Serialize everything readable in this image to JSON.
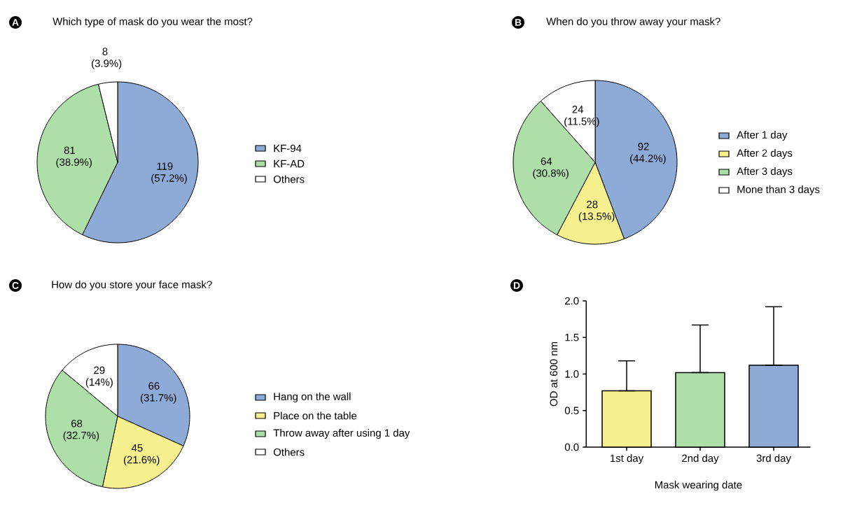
{
  "chart_data": [
    {
      "type": "pie",
      "title": "Which type of mask do you wear the most?",
      "annotations": [
        "A"
      ],
      "categories": [
        "KF-94",
        "KF-AD",
        "Others"
      ],
      "values": [
        119,
        81,
        8
      ],
      "colors": [
        "#8eaad6",
        "#aedfa9",
        "#ffffff"
      ],
      "value_labels": [
        "119 (57.2%)",
        "81 (38.9%)",
        "8 (3.9%)"
      ],
      "legend": "right"
    },
    {
      "type": "pie",
      "title": "When do you throw away your mask?",
      "annotations": [
        "B"
      ],
      "categories": [
        "After 1 day",
        "After 2 days",
        "After 3 days",
        "Mone than 3 days"
      ],
      "values": [
        92,
        28,
        64,
        24
      ],
      "colors": [
        "#8eaad6",
        "#f7f08e",
        "#aedfa9",
        "#ffffff"
      ],
      "value_labels": [
        "92 (44.2%)",
        "28 (13.5%)",
        "64 (30.8%)",
        "24 (11.5%)"
      ],
      "legend": "right"
    },
    {
      "type": "pie",
      "title": "How do you store your face mask?",
      "annotations": [
        "C"
      ],
      "categories": [
        "Hang on the wall",
        "Place on the table",
        "Throw away after using 1 day",
        "Others"
      ],
      "values": [
        66,
        45,
        68,
        29
      ],
      "colors": [
        "#8eaad6",
        "#f7f08e",
        "#aedfa9",
        "#ffffff"
      ],
      "value_labels": [
        "66 (31.7%)",
        "45 (21.6%)",
        "68 (32.7%)",
        "29 (14%)"
      ],
      "legend": "right"
    },
    {
      "type": "bar",
      "annotations": [
        "D"
      ],
      "xlabel": "Mask wearing date",
      "ylabel": "OD at 600 nm",
      "categories": [
        "1st day",
        "2nd day",
        "3rd day"
      ],
      "values": [
        0.77,
        1.02,
        1.12
      ],
      "colors": [
        "#f7f08e",
        "#aedfa9",
        "#8eaad6"
      ],
      "errors": [
        [
          0.77,
          1.18
        ],
        [
          1.02,
          1.67
        ],
        [
          1.12,
          1.92
        ]
      ],
      "ylim": [
        0,
        2.0
      ],
      "yticks": [
        {
          "value": 0,
          "label": "0.0"
        },
        {
          "value": 0.5,
          "label": "0.5"
        },
        {
          "value": 1.0,
          "label": "1.0"
        },
        {
          "value": 1.5,
          "label": "1.5"
        },
        {
          "value": 2.0,
          "label": "2.0"
        }
      ],
      "grid": false
    }
  ]
}
